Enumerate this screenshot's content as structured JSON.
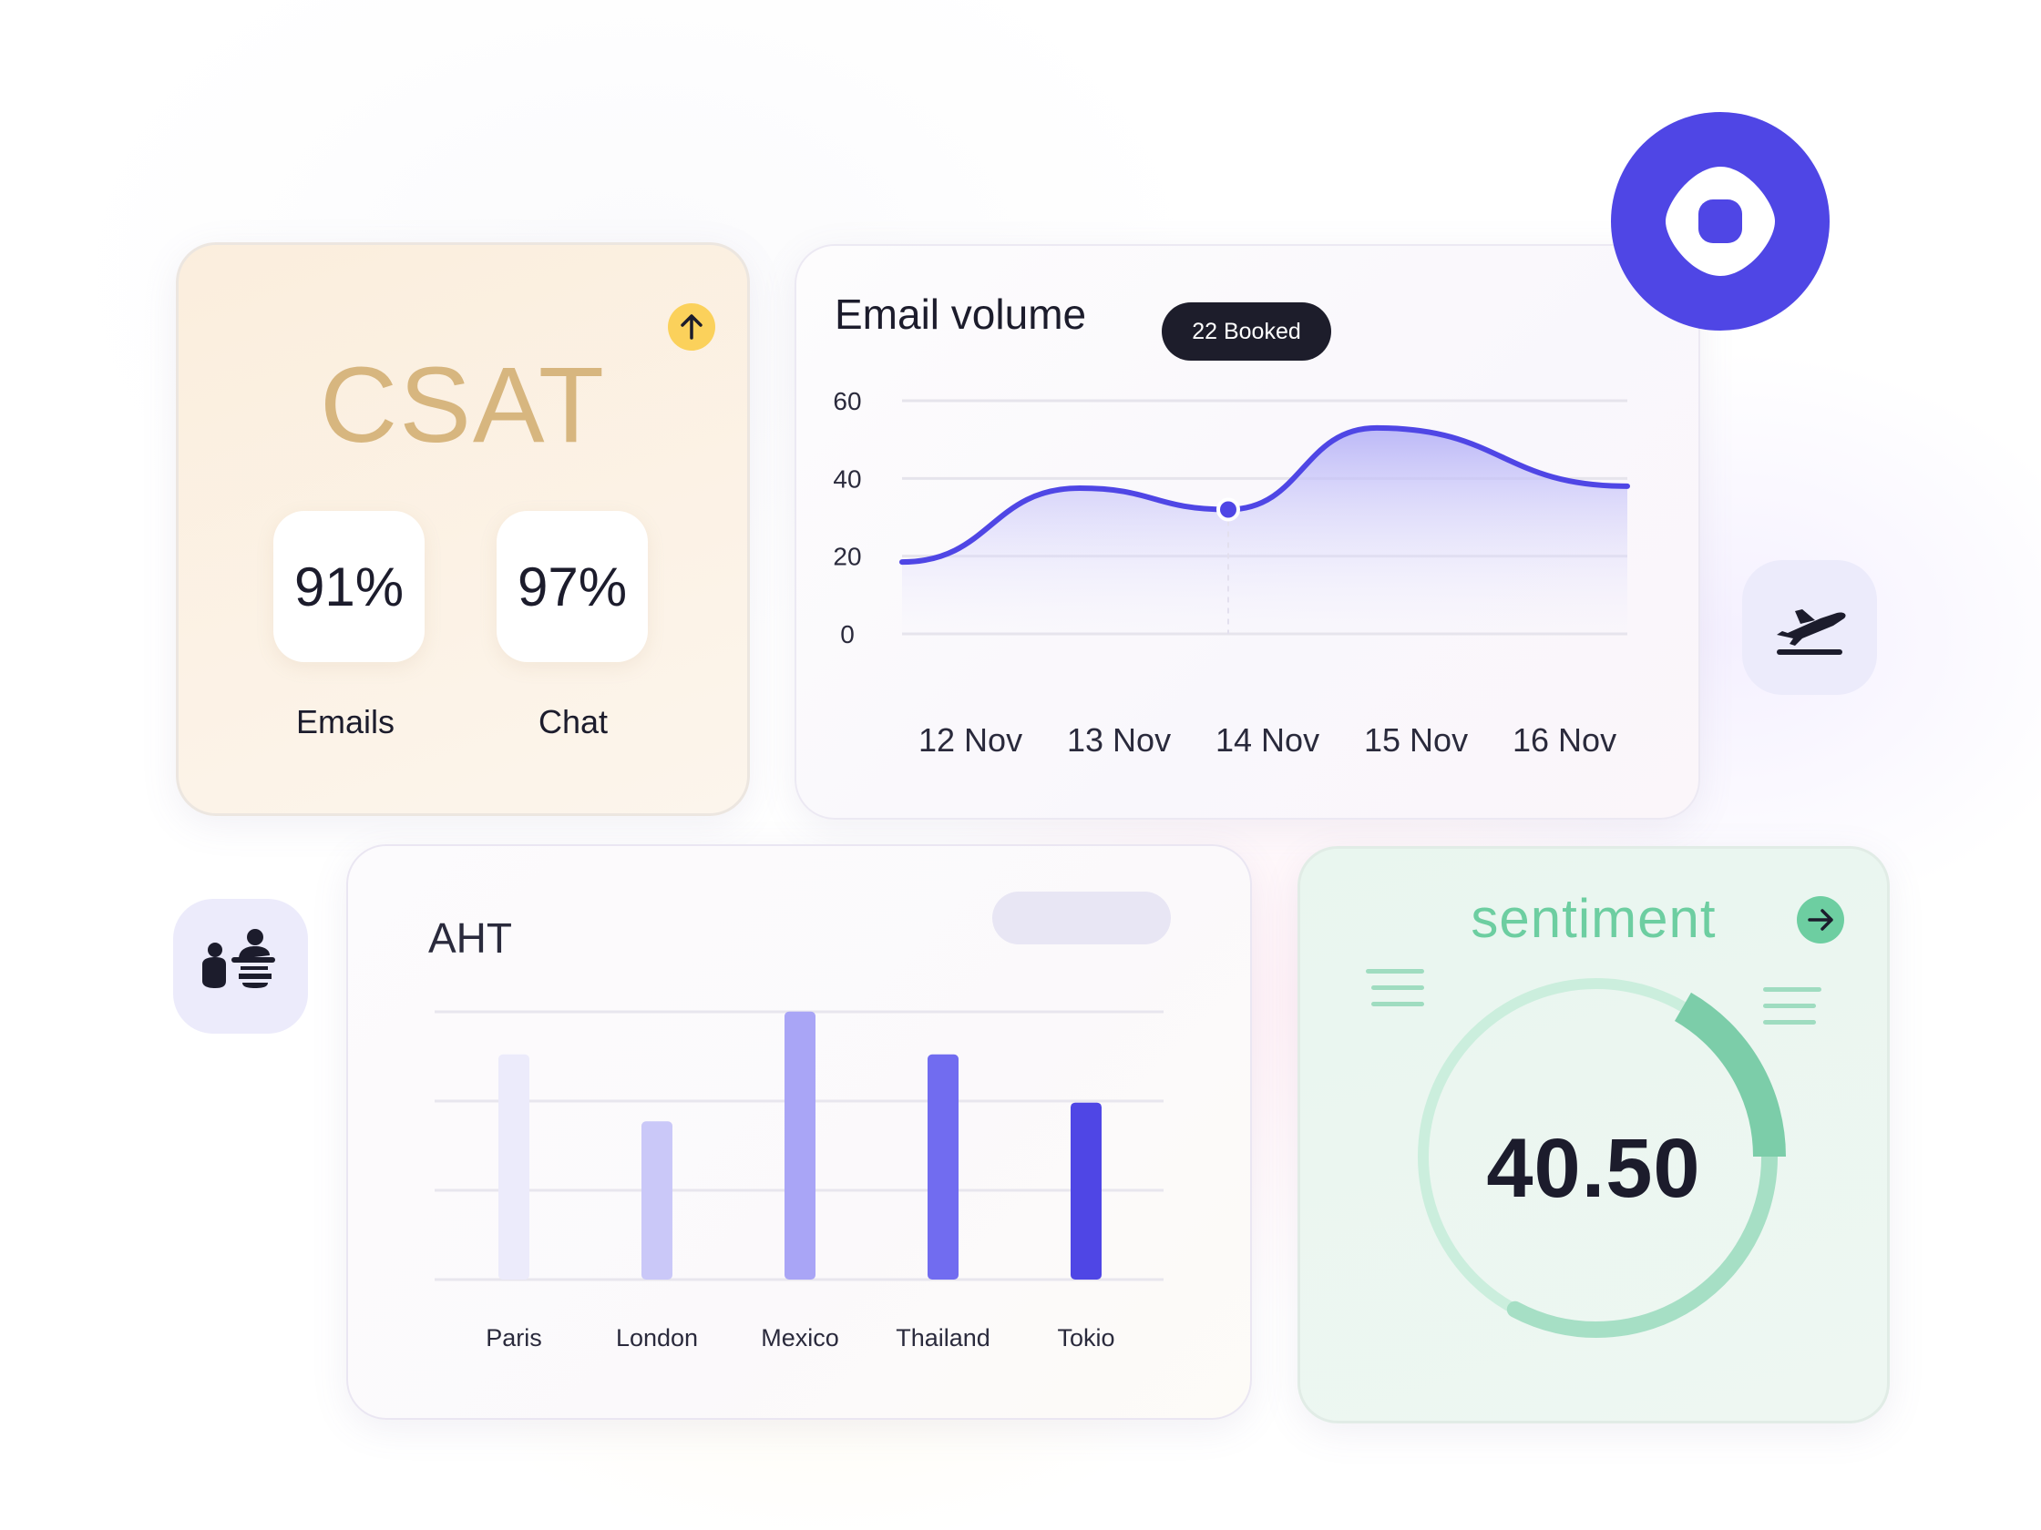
{
  "csat": {
    "title": "CSAT",
    "trend_icon": "arrow-up-icon",
    "metrics": [
      {
        "value": "91%",
        "label": "Emails"
      },
      {
        "value": "97%",
        "label": "Chat"
      }
    ]
  },
  "email_volume": {
    "title": "Email volume",
    "badge": "22 Booked",
    "y_ticks": [
      "60",
      "40",
      "20",
      "0"
    ],
    "x_labels": [
      "12 Nov",
      "13 Nov",
      "14 Nov",
      "15 Nov",
      "16 Nov"
    ]
  },
  "aht": {
    "title": "AHT"
  },
  "sentiment": {
    "title": "sentiment",
    "value": "40.50",
    "action_icon": "arrow-right-icon"
  },
  "icons": {
    "camera": "camera-icon",
    "flight": "airplane-takeoff-icon",
    "people": "users-icon"
  },
  "colors": {
    "accent": "#4f46e5",
    "csat_gold": "#d7b67f",
    "sentiment_green": "#6dcea1",
    "badge_dark": "#1d1d2b"
  },
  "chart_data": [
    {
      "type": "area",
      "title": "Email volume",
      "x": [
        "12 Nov",
        "13 Nov",
        "14 Nov",
        "15 Nov",
        "16 Nov"
      ],
      "series": [
        {
          "values": [
            18.5,
            37.5,
            32,
            53,
            38
          ]
        }
      ],
      "highlight_point": {
        "x": "14 Nov",
        "y": 32
      },
      "ylim": [
        0,
        60
      ],
      "y_ticks": [
        0,
        20,
        40,
        60
      ],
      "grid": true
    },
    {
      "type": "bar",
      "title": "AHT",
      "categories": [
        "Paris",
        "London",
        "Mexico",
        "Thailand",
        "Tokio"
      ],
      "values": [
        0.8,
        0.55,
        0.96,
        0.8,
        0.62
      ],
      "value_scale": "relative (no axis printed)",
      "colors": [
        "#ecebfb",
        "#cac8f8",
        "#a9a5f6",
        "#716cf0",
        "#4f46e5"
      ],
      "grid": true
    },
    {
      "type": "gauge",
      "title": "sentiment",
      "value": 40.5
    }
  ]
}
